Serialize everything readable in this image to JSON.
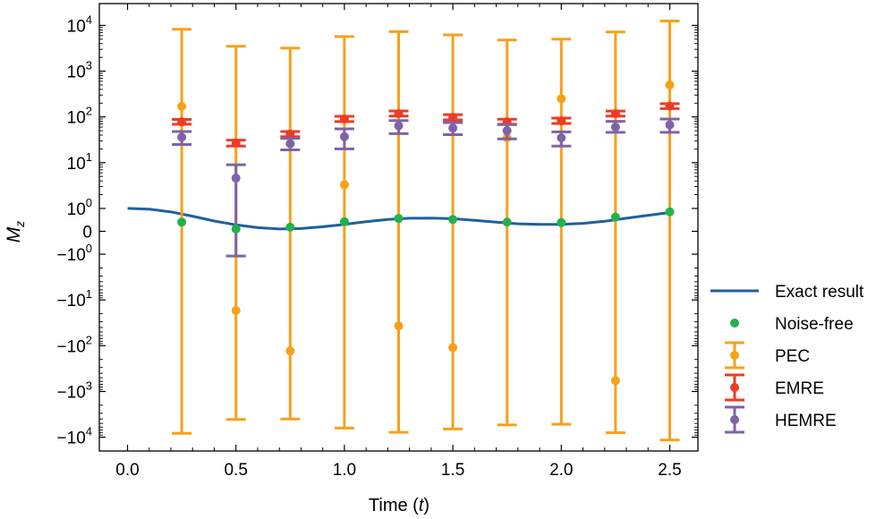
{
  "chart_data": {
    "type": "scatter",
    "title": "",
    "xlabel": "Time",
    "xlabel_var": "t",
    "ylabel": "M",
    "ylabel_sub": "z",
    "yscale": "symlog",
    "xlim": [
      -0.13,
      2.63
    ],
    "ylim": [
      -20000,
      30000
    ],
    "grid": false,
    "legend_position": "outside-right",
    "x_ticks": [
      {
        "value": 0.0,
        "label": "0.0"
      },
      {
        "value": 0.5,
        "label": "0.5"
      },
      {
        "value": 1.0,
        "label": "1.0"
      },
      {
        "value": 1.5,
        "label": "1.5"
      },
      {
        "value": 2.0,
        "label": "2.0"
      },
      {
        "value": 2.5,
        "label": "2.5"
      }
    ],
    "y_ticks": [
      {
        "value": 10000,
        "base": "10",
        "exp": "4"
      },
      {
        "value": 1000,
        "base": "10",
        "exp": "3"
      },
      {
        "value": 100,
        "base": "10",
        "exp": "2"
      },
      {
        "value": 10,
        "base": "10",
        "exp": "1"
      },
      {
        "value": 1,
        "base": "10",
        "exp": "0"
      },
      {
        "value": 0,
        "base": "0",
        "exp": ""
      },
      {
        "value": -1,
        "base": "−10",
        "exp": "0"
      },
      {
        "value": -10,
        "base": "−10",
        "exp": "1"
      },
      {
        "value": -100,
        "base": "−10",
        "exp": "2"
      },
      {
        "value": -1000,
        "base": "−10",
        "exp": "3"
      },
      {
        "value": -10000,
        "base": "−10",
        "exp": "4"
      }
    ],
    "series": [
      {
        "name": "Exact result",
        "kind": "line",
        "color": "#1f5fa0",
        "x": [
          0,
          0.1,
          0.2,
          0.3,
          0.4,
          0.5,
          0.6,
          0.7,
          0.8,
          0.9,
          1.0,
          1.1,
          1.2,
          1.3,
          1.4,
          1.5,
          1.6,
          1.7,
          1.8,
          1.9,
          2.0,
          2.1,
          2.2,
          2.3,
          2.4,
          2.5
        ],
        "y": [
          1.0,
          0.97,
          0.85,
          0.66,
          0.45,
          0.28,
          0.16,
          0.1,
          0.12,
          0.2,
          0.3,
          0.42,
          0.52,
          0.57,
          0.58,
          0.55,
          0.48,
          0.4,
          0.33,
          0.3,
          0.3,
          0.35,
          0.44,
          0.57,
          0.7,
          0.82
        ]
      },
      {
        "name": "Noise-free",
        "kind": "points",
        "color": "#22b14c",
        "x": [
          0.25,
          0.5,
          0.75,
          1.0,
          1.25,
          1.5,
          1.75,
          2.0,
          2.25,
          2.5
        ],
        "y": [
          0.4,
          0.1,
          0.18,
          0.42,
          0.56,
          0.52,
          0.4,
          0.38,
          0.62,
          0.85
        ]
      },
      {
        "name": "PEC",
        "kind": "errorbar",
        "color": "#f7a11a",
        "x": [
          0.25,
          0.5,
          0.75,
          1.0,
          1.25,
          1.5,
          1.75,
          2.0,
          2.25,
          2.5
        ],
        "y": [
          170,
          -17,
          -130,
          3.3,
          -37,
          -110,
          35,
          250,
          -580,
          500
        ],
        "y_upper": [
          8200,
          3500,
          3200,
          5700,
          7300,
          6200,
          4800,
          5000,
          7200,
          12500
        ],
        "y_lower": [
          -8200,
          -4100,
          -4000,
          -6300,
          -7800,
          -6600,
          -5400,
          -5200,
          -8000,
          -11500
        ]
      },
      {
        "name": "EMRE",
        "kind": "errorbar",
        "color": "#ee3b24",
        "x": [
          0.25,
          0.5,
          0.75,
          1.0,
          1.25,
          1.5,
          1.75,
          2.0,
          2.25,
          2.5
        ],
        "y": [
          78,
          27,
          42,
          90,
          118,
          98,
          78,
          82,
          118,
          172
        ],
        "y_upper": [
          88,
          31,
          48,
          103,
          135,
          112,
          89,
          94,
          134,
          195
        ],
        "y_lower": [
          69,
          23,
          37,
          79,
          104,
          86,
          69,
          72,
          104,
          152
        ]
      },
      {
        "name": "HEMRE",
        "kind": "errorbar",
        "color": "#8062a6",
        "x": [
          0.25,
          0.5,
          0.75,
          1.0,
          1.25,
          1.5,
          1.75,
          2.0,
          2.25,
          2.5
        ],
        "y": [
          36,
          4.6,
          26,
          37,
          64,
          57,
          50,
          35,
          60,
          67
        ],
        "y_upper": [
          48,
          9,
          34,
          55,
          83,
          75,
          68,
          47,
          80,
          90
        ],
        "y_lower": [
          25,
          -1.1,
          19,
          20,
          43,
          41,
          33,
          23,
          46,
          46
        ]
      }
    ]
  }
}
